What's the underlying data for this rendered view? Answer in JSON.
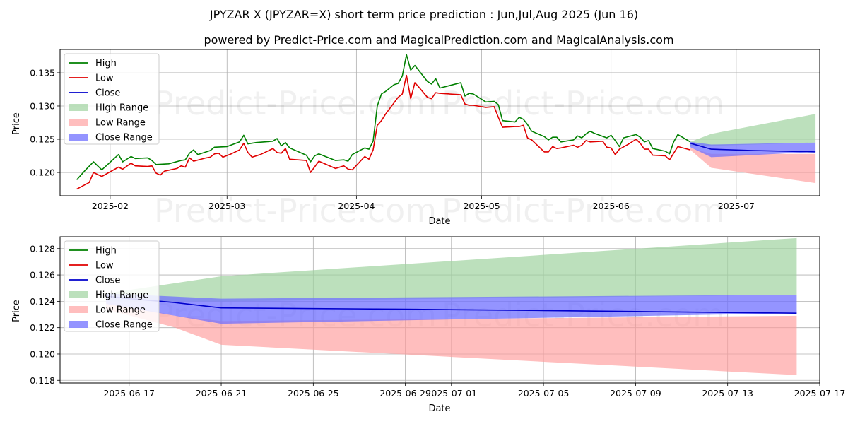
{
  "title": "JPYZAR X (JPYZAR=X) short term price prediction : Jun,Jul,Aug 2025 (Jun 16)",
  "subtitle": "powered by Predict-Price.com and MagicalPrediction.com and MagicalAnalysis.com",
  "watermark": "Predict-Price.com",
  "colors": {
    "high": "#008000",
    "low": "#e00000",
    "close": "#0000cc",
    "high_range": "#9fd39f",
    "low_range": "#ff9b9b",
    "close_range": "#7070ff",
    "grid": "#b0b0b0"
  },
  "chart_data": [
    {
      "type": "line",
      "name": "history-and-forecast",
      "xlabel": "Date",
      "ylabel": "Price",
      "grid": true,
      "legend": "top-left",
      "legend_entries": [
        "High",
        "Low",
        "Close",
        "High Range",
        "Low Range",
        "Close Range"
      ],
      "xlim": [
        "2025-01-20",
        "2025-07-21"
      ],
      "ylim": [
        0.1165,
        0.1385
      ],
      "x_ticks": [
        "2025-02-01",
        "2025-03-01",
        "2025-04-01",
        "2025-05-01",
        "2025-06-01",
        "2025-07-01"
      ],
      "x_tick_labels": [
        "2025-02",
        "2025-03",
        "2025-04",
        "2025-05",
        "2025-06",
        "2025-07"
      ],
      "y_ticks": [
        0.12,
        0.125,
        0.13,
        0.135
      ],
      "y_tick_labels": [
        "0.120",
        "0.125",
        "0.130",
        "0.135"
      ],
      "high": [
        [
          "2025-01-24",
          0.1189
        ],
        [
          "2025-01-26",
          0.1203
        ],
        [
          "2025-01-28",
          0.1216
        ],
        [
          "2025-01-30",
          0.1204
        ],
        [
          "2025-02-03",
          0.1227
        ],
        [
          "2025-02-04",
          0.1216
        ],
        [
          "2025-02-06",
          0.1224
        ],
        [
          "2025-02-07",
          0.1221
        ],
        [
          "2025-02-10",
          0.1222
        ],
        [
          "2025-02-11",
          0.1218
        ],
        [
          "2025-02-12",
          0.1212
        ],
        [
          "2025-02-15",
          0.1213
        ],
        [
          "2025-02-18",
          0.1218
        ],
        [
          "2025-02-19",
          0.1219
        ],
        [
          "2025-02-20",
          0.1229
        ],
        [
          "2025-02-21",
          0.1234
        ],
        [
          "2025-02-22",
          0.1227
        ],
        [
          "2025-02-25",
          0.1233
        ],
        [
          "2025-02-26",
          0.1238
        ],
        [
          "2025-03-01",
          0.1239
        ],
        [
          "2025-03-04",
          0.1246
        ],
        [
          "2025-03-05",
          0.1256
        ],
        [
          "2025-03-06",
          0.1243
        ],
        [
          "2025-03-08",
          0.1245
        ],
        [
          "2025-03-12",
          0.1247
        ],
        [
          "2025-03-13",
          0.1251
        ],
        [
          "2025-03-14",
          0.124
        ],
        [
          "2025-03-15",
          0.1245
        ],
        [
          "2025-03-16",
          0.1237
        ],
        [
          "2025-03-20",
          0.1226
        ],
        [
          "2025-03-21",
          0.1216
        ],
        [
          "2025-03-22",
          0.1225
        ],
        [
          "2025-03-23",
          0.1228
        ],
        [
          "2025-03-27",
          0.1218
        ],
        [
          "2025-03-29",
          0.1219
        ],
        [
          "2025-03-30",
          0.1217
        ],
        [
          "2025-03-31",
          0.1227
        ],
        [
          "2025-04-03",
          0.1237
        ],
        [
          "2025-04-04",
          0.1235
        ],
        [
          "2025-04-05",
          0.1247
        ],
        [
          "2025-04-06",
          0.13
        ],
        [
          "2025-04-07",
          0.1318
        ],
        [
          "2025-04-08",
          0.1322
        ],
        [
          "2025-04-10",
          0.1332
        ],
        [
          "2025-04-11",
          0.1334
        ],
        [
          "2025-04-12",
          0.1345
        ],
        [
          "2025-04-13",
          0.1377
        ],
        [
          "2025-04-14",
          0.1354
        ],
        [
          "2025-04-15",
          0.1361
        ],
        [
          "2025-04-18",
          0.1337
        ],
        [
          "2025-04-19",
          0.1333
        ],
        [
          "2025-04-20",
          0.1341
        ],
        [
          "2025-04-21",
          0.1327
        ],
        [
          "2025-04-26",
          0.1335
        ],
        [
          "2025-04-27",
          0.1315
        ],
        [
          "2025-04-28",
          0.1319
        ],
        [
          "2025-04-29",
          0.1318
        ],
        [
          "2025-05-02",
          0.1306
        ],
        [
          "2025-05-04",
          0.1307
        ],
        [
          "2025-05-05",
          0.1302
        ],
        [
          "2025-05-06",
          0.1278
        ],
        [
          "2025-05-09",
          0.1276
        ],
        [
          "2025-05-10",
          0.1283
        ],
        [
          "2025-05-11",
          0.128
        ],
        [
          "2025-05-12",
          0.1272
        ],
        [
          "2025-05-13",
          0.1262
        ],
        [
          "2025-05-16",
          0.1254
        ],
        [
          "2025-05-17",
          0.1249
        ],
        [
          "2025-05-18",
          0.1253
        ],
        [
          "2025-05-19",
          0.1253
        ],
        [
          "2025-05-20",
          0.1246
        ],
        [
          "2025-05-23",
          0.1249
        ],
        [
          "2025-05-24",
          0.1255
        ],
        [
          "2025-05-25",
          0.1252
        ],
        [
          "2025-05-26",
          0.1258
        ],
        [
          "2025-05-27",
          0.1262
        ],
        [
          "2025-05-28",
          0.1259
        ],
        [
          "2025-05-31",
          0.1252
        ],
        [
          "2025-06-01",
          0.1256
        ],
        [
          "2025-06-02",
          0.1248
        ],
        [
          "2025-06-03",
          0.1239
        ],
        [
          "2025-06-04",
          0.1252
        ],
        [
          "2025-06-07",
          0.1257
        ],
        [
          "2025-06-08",
          0.1253
        ],
        [
          "2025-06-09",
          0.1246
        ],
        [
          "2025-06-10",
          0.1248
        ],
        [
          "2025-06-11",
          0.1236
        ],
        [
          "2025-06-14",
          0.1232
        ],
        [
          "2025-06-15",
          0.1228
        ],
        [
          "2025-06-16",
          0.1246
        ],
        [
          "2025-06-17",
          0.1257
        ],
        [
          "2025-06-20",
          0.1246
        ]
      ],
      "low": [
        [
          "2025-01-24",
          0.1175
        ],
        [
          "2025-01-27",
          0.1185
        ],
        [
          "2025-01-28",
          0.12
        ],
        [
          "2025-01-30",
          0.1194
        ],
        [
          "2025-02-03",
          0.1208
        ],
        [
          "2025-02-04",
          0.1205
        ],
        [
          "2025-02-06",
          0.1214
        ],
        [
          "2025-02-07",
          0.121
        ],
        [
          "2025-02-10",
          0.1209
        ],
        [
          "2025-02-11",
          0.121
        ],
        [
          "2025-02-12",
          0.1199
        ],
        [
          "2025-02-13",
          0.1196
        ],
        [
          "2025-02-14",
          0.1202
        ],
        [
          "2025-02-17",
          0.1206
        ],
        [
          "2025-02-18",
          0.121
        ],
        [
          "2025-02-19",
          0.1208
        ],
        [
          "2025-02-20",
          0.1222
        ],
        [
          "2025-02-21",
          0.1217
        ],
        [
          "2025-02-24",
          0.1222
        ],
        [
          "2025-02-25",
          0.1223
        ],
        [
          "2025-02-26",
          0.1228
        ],
        [
          "2025-02-27",
          0.1229
        ],
        [
          "2025-02-28",
          0.1223
        ],
        [
          "2025-03-02",
          0.1228
        ],
        [
          "2025-03-04",
          0.1234
        ],
        [
          "2025-03-05",
          0.1244
        ],
        [
          "2025-03-06",
          0.123
        ],
        [
          "2025-03-07",
          0.1223
        ],
        [
          "2025-03-09",
          0.1227
        ],
        [
          "2025-03-12",
          0.1236
        ],
        [
          "2025-03-13",
          0.123
        ],
        [
          "2025-03-14",
          0.1229
        ],
        [
          "2025-03-15",
          0.1236
        ],
        [
          "2025-03-16",
          0.122
        ],
        [
          "2025-03-20",
          0.1218
        ],
        [
          "2025-03-21",
          0.12
        ],
        [
          "2025-03-23",
          0.1217
        ],
        [
          "2025-03-27",
          0.1206
        ],
        [
          "2025-03-29",
          0.121
        ],
        [
          "2025-03-30",
          0.1205
        ],
        [
          "2025-03-31",
          0.1204
        ],
        [
          "2025-04-03",
          0.1224
        ],
        [
          "2025-04-04",
          0.122
        ],
        [
          "2025-04-05",
          0.1234
        ],
        [
          "2025-04-06",
          0.1271
        ],
        [
          "2025-04-07",
          0.1278
        ],
        [
          "2025-04-08",
          0.1288
        ],
        [
          "2025-04-11",
          0.1313
        ],
        [
          "2025-04-12",
          0.1318
        ],
        [
          "2025-04-13",
          0.1346
        ],
        [
          "2025-04-14",
          0.1311
        ],
        [
          "2025-04-15",
          0.1335
        ],
        [
          "2025-04-16",
          0.1328
        ],
        [
          "2025-04-18",
          0.1313
        ],
        [
          "2025-04-19",
          0.1311
        ],
        [
          "2025-04-20",
          0.132
        ],
        [
          "2025-04-21",
          0.1319
        ],
        [
          "2025-04-26",
          0.1317
        ],
        [
          "2025-04-27",
          0.1303
        ],
        [
          "2025-04-28",
          0.1301
        ],
        [
          "2025-04-29",
          0.1301
        ],
        [
          "2025-05-02",
          0.1298
        ],
        [
          "2025-05-04",
          0.1299
        ],
        [
          "2025-05-05",
          0.1283
        ],
        [
          "2025-05-06",
          0.1268
        ],
        [
          "2025-05-09",
          0.1269
        ],
        [
          "2025-05-10",
          0.1269
        ],
        [
          "2025-05-11",
          0.1271
        ],
        [
          "2025-05-12",
          0.1252
        ],
        [
          "2025-05-13",
          0.1249
        ],
        [
          "2025-05-16",
          0.1231
        ],
        [
          "2025-05-17",
          0.1231
        ],
        [
          "2025-05-18",
          0.1239
        ],
        [
          "2025-05-19",
          0.1236
        ],
        [
          "2025-05-20",
          0.1237
        ],
        [
          "2025-05-23",
          0.1241
        ],
        [
          "2025-05-24",
          0.1238
        ],
        [
          "2025-05-25",
          0.1241
        ],
        [
          "2025-05-26",
          0.1248
        ],
        [
          "2025-05-27",
          0.1246
        ],
        [
          "2025-05-30",
          0.1247
        ],
        [
          "2025-05-31",
          0.1238
        ],
        [
          "2025-06-01",
          0.1237
        ],
        [
          "2025-06-02",
          0.1227
        ],
        [
          "2025-06-03",
          0.1235
        ],
        [
          "2025-06-05",
          0.1242
        ],
        [
          "2025-06-07",
          0.125
        ],
        [
          "2025-06-08",
          0.1244
        ],
        [
          "2025-06-09",
          0.1235
        ],
        [
          "2025-06-10",
          0.1235
        ],
        [
          "2025-06-11",
          0.1226
        ],
        [
          "2025-06-14",
          0.1225
        ],
        [
          "2025-06-15",
          0.1219
        ],
        [
          "2025-06-16",
          0.1229
        ],
        [
          "2025-06-17",
          0.1239
        ],
        [
          "2025-06-20",
          0.1234
        ]
      ],
      "close_forecast": [
        [
          "2025-06-20",
          0.1244
        ],
        [
          "2025-06-25",
          0.1235
        ],
        [
          "2025-07-05",
          0.1233
        ],
        [
          "2025-07-20",
          0.1231
        ]
      ],
      "high_range": {
        "upper": [
          [
            "2025-06-20",
            0.1246
          ],
          [
            "2025-06-25",
            0.1258
          ],
          [
            "2025-07-20",
            0.1288
          ]
        ],
        "lower": [
          [
            "2025-06-20",
            0.124
          ],
          [
            "2025-06-25",
            0.124
          ],
          [
            "2025-07-20",
            0.1245
          ]
        ]
      },
      "low_range": {
        "upper": [
          [
            "2025-06-20",
            0.1237
          ],
          [
            "2025-06-25",
            0.1228
          ],
          [
            "2025-07-20",
            0.1228
          ]
        ],
        "lower": [
          [
            "2025-06-20",
            0.1234
          ],
          [
            "2025-06-25",
            0.1207
          ],
          [
            "2025-07-20",
            0.1184
          ]
        ]
      },
      "close_range": {
        "upper": [
          [
            "2025-06-20",
            0.1246
          ],
          [
            "2025-06-25",
            0.1242
          ],
          [
            "2025-07-20",
            0.1245
          ]
        ],
        "lower": [
          [
            "2025-06-20",
            0.1238
          ],
          [
            "2025-06-25",
            0.1223
          ],
          [
            "2025-07-20",
            0.1231
          ]
        ]
      }
    },
    {
      "type": "line",
      "name": "forecast-zoom",
      "xlabel": "Date",
      "ylabel": "Price",
      "grid": true,
      "legend": "top-left",
      "legend_entries": [
        "High",
        "Low",
        "Close",
        "High Range",
        "Low Range",
        "Close Range"
      ],
      "xlim": [
        "2025-06-14",
        "2025-07-17"
      ],
      "ylim": [
        0.1178,
        0.1289
      ],
      "x_ticks": [
        "2025-06-17",
        "2025-06-21",
        "2025-06-25",
        "2025-06-29",
        "2025-07-01",
        "2025-07-05",
        "2025-07-09",
        "2025-07-13",
        "2025-07-17"
      ],
      "x_tick_labels": [
        "2025-06-17",
        "2025-06-21",
        "2025-06-25",
        "2025-06-29",
        "2025-07-01",
        "2025-07-05",
        "2025-07-09",
        "2025-07-13",
        "2025-07-17"
      ],
      "y_ticks": [
        0.118,
        0.12,
        0.122,
        0.124,
        0.126,
        0.128
      ],
      "y_tick_labels": [
        "0.118",
        "0.120",
        "0.122",
        "0.124",
        "0.126",
        "0.128"
      ],
      "close_forecast": [
        [
          "2025-06-16",
          0.1244
        ],
        [
          "2025-06-17",
          0.1242
        ],
        [
          "2025-06-19",
          0.1239
        ],
        [
          "2025-06-21",
          0.1235
        ],
        [
          "2025-06-29",
          0.1234
        ],
        [
          "2025-07-05",
          0.1233
        ],
        [
          "2025-07-16",
          0.1231
        ]
      ],
      "high_range": {
        "upper": [
          [
            "2025-06-16",
            0.1246
          ],
          [
            "2025-06-21",
            0.1259
          ],
          [
            "2025-07-16",
            0.1288
          ]
        ],
        "lower": [
          [
            "2025-06-16",
            0.124
          ],
          [
            "2025-06-21",
            0.124
          ],
          [
            "2025-07-16",
            0.1245
          ]
        ]
      },
      "low_range": {
        "upper": [
          [
            "2025-06-16",
            0.124
          ],
          [
            "2025-06-19",
            0.1229
          ],
          [
            "2025-06-21",
            0.1225
          ],
          [
            "2025-07-16",
            0.1229
          ]
        ],
        "lower": [
          [
            "2025-06-16",
            0.1234
          ],
          [
            "2025-06-19",
            0.122
          ],
          [
            "2025-06-21",
            0.1207
          ],
          [
            "2025-07-16",
            0.1184
          ]
        ]
      },
      "close_range": {
        "upper": [
          [
            "2025-06-16",
            0.1246
          ],
          [
            "2025-06-21",
            0.1242
          ],
          [
            "2025-07-16",
            0.1245
          ]
        ],
        "lower": [
          [
            "2025-06-16",
            0.1238
          ],
          [
            "2025-06-21",
            0.1223
          ],
          [
            "2025-07-16",
            0.1231
          ]
        ]
      }
    }
  ]
}
